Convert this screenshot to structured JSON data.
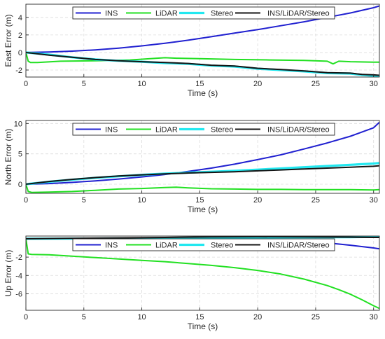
{
  "chart_data": [
    {
      "type": "line",
      "xlabel": "Time (s)",
      "ylabel": "East Error (m)",
      "xlim": [
        0,
        30.5
      ],
      "ylim": [
        -2.8,
        5.5
      ],
      "xticks": [
        0,
        5,
        10,
        15,
        20,
        25,
        30
      ],
      "yticks": [
        -2,
        0,
        2,
        4
      ],
      "grid": true,
      "legend": "top-inside-horizontal",
      "series": [
        {
          "name": "INS",
          "color": "#2020d0",
          "x": [
            0,
            2,
            4,
            6,
            8,
            10,
            12,
            14,
            16,
            18,
            20,
            22,
            24,
            26,
            28,
            30,
            30.5
          ],
          "y": [
            0,
            0.05,
            0.15,
            0.3,
            0.5,
            0.75,
            1.05,
            1.4,
            1.8,
            2.2,
            2.6,
            3.05,
            3.5,
            4.0,
            4.5,
            5.1,
            5.3
          ]
        },
        {
          "name": "LiDAR",
          "color": "#22e022",
          "x": [
            0,
            0.2,
            0.4,
            1,
            3,
            6,
            9,
            12,
            13,
            15,
            18,
            21,
            24,
            26,
            26.5,
            27,
            28,
            30,
            30.5
          ],
          "y": [
            0,
            -1.0,
            -1.15,
            -1.15,
            -1.0,
            -0.95,
            -0.85,
            -0.6,
            -0.65,
            -0.7,
            -0.8,
            -0.85,
            -0.9,
            -1.0,
            -1.3,
            -1.0,
            -1.05,
            -1.1,
            -1.1
          ]
        },
        {
          "name": "Stereo",
          "color": "#22e8f0",
          "x": [
            0,
            2,
            4,
            6,
            8,
            10,
            12,
            14,
            16,
            18,
            20,
            22,
            24,
            26,
            28,
            29,
            30,
            30.5
          ],
          "y": [
            0,
            -0.25,
            -0.55,
            -0.8,
            -0.95,
            -1.05,
            -1.2,
            -1.3,
            -1.5,
            -1.6,
            -1.85,
            -2.0,
            -2.15,
            -2.35,
            -2.4,
            -2.55,
            -2.65,
            -2.75
          ]
        },
        {
          "name": "INS/LiDAR/Stereo",
          "color": "#141414",
          "x": [
            0,
            2,
            4,
            6,
            8,
            10,
            12,
            14,
            16,
            18,
            20,
            22,
            24,
            26,
            28,
            29,
            30,
            30.5
          ],
          "y": [
            0,
            -0.3,
            -0.55,
            -0.8,
            -0.95,
            -1.05,
            -1.15,
            -1.25,
            -1.45,
            -1.55,
            -1.8,
            -1.95,
            -2.1,
            -2.3,
            -2.35,
            -2.5,
            -2.55,
            -2.6
          ]
        }
      ]
    },
    {
      "type": "line",
      "xlabel": "Time (s)",
      "ylabel": "North Error (m)",
      "xlim": [
        0,
        30.5
      ],
      "ylim": [
        -1.5,
        10.5
      ],
      "xticks": [
        0,
        5,
        10,
        15,
        20,
        25,
        30
      ],
      "yticks": [
        0,
        5,
        10
      ],
      "grid": true,
      "legend": "top-inside-horizontal",
      "series": [
        {
          "name": "INS",
          "color": "#2020d0",
          "x": [
            0,
            2,
            4,
            6,
            8,
            10,
            12,
            14,
            16,
            18,
            20,
            22,
            24,
            26,
            28,
            30,
            30.5
          ],
          "y": [
            0,
            0.1,
            0.3,
            0.55,
            0.85,
            1.2,
            1.6,
            2.1,
            2.65,
            3.3,
            4.05,
            4.85,
            5.8,
            6.8,
            7.9,
            9.3,
            10.2
          ]
        },
        {
          "name": "LiDAR",
          "color": "#22e022",
          "x": [
            0,
            0.2,
            0.5,
            2,
            4,
            6,
            8,
            10,
            12,
            13,
            14,
            16,
            18,
            20,
            22,
            24,
            26,
            28,
            30,
            30.5
          ],
          "y": [
            0,
            -1.2,
            -1.35,
            -1.3,
            -1.2,
            -1.0,
            -0.8,
            -0.7,
            -0.55,
            -0.5,
            -0.6,
            -0.75,
            -0.8,
            -0.85,
            -0.85,
            -0.9,
            -0.9,
            -0.9,
            -0.95,
            -0.9
          ]
        },
        {
          "name": "Stereo",
          "color": "#22e8f0",
          "x": [
            0,
            2,
            4,
            6,
            8,
            10,
            12,
            14,
            16,
            18,
            20,
            22,
            24,
            26,
            28,
            30,
            30.5
          ],
          "y": [
            0,
            0.4,
            0.75,
            1.05,
            1.3,
            1.55,
            1.75,
            1.9,
            2.05,
            2.2,
            2.4,
            2.6,
            2.8,
            3.0,
            3.2,
            3.4,
            3.5
          ]
        },
        {
          "name": "INS/LiDAR/Stereo",
          "color": "#141414",
          "x": [
            0,
            2,
            4,
            6,
            8,
            10,
            12,
            14,
            16,
            18,
            20,
            22,
            24,
            26,
            28,
            30,
            30.5
          ],
          "y": [
            0,
            0.45,
            0.8,
            1.1,
            1.35,
            1.55,
            1.7,
            1.85,
            1.95,
            2.05,
            2.2,
            2.35,
            2.5,
            2.65,
            2.8,
            2.95,
            3.05
          ]
        }
      ]
    },
    {
      "type": "line",
      "xlabel": "Time (s)",
      "ylabel": "Up Error (m)",
      "xlim": [
        0,
        30.5
      ],
      "ylim": [
        -7.8,
        0.3
      ],
      "xticks": [
        0,
        5,
        10,
        15,
        20,
        25,
        30
      ],
      "yticks": [
        -6,
        -4,
        -2
      ],
      "grid": true,
      "legend": "top-inside-horizontal",
      "series": [
        {
          "name": "INS",
          "color": "#2020d0",
          "x": [
            0,
            4,
            8,
            12,
            16,
            20,
            24,
            26,
            28,
            30,
            30.5
          ],
          "y": [
            0,
            0,
            -0.05,
            -0.1,
            -0.15,
            -0.2,
            -0.3,
            -0.45,
            -0.7,
            -1.0,
            -1.1
          ]
        },
        {
          "name": "LiDAR",
          "color": "#22e022",
          "x": [
            0,
            0.2,
            0.5,
            2,
            4,
            6,
            8,
            10,
            12,
            14,
            16,
            18,
            20,
            22,
            24,
            26,
            27,
            28,
            29,
            30,
            30.5
          ],
          "y": [
            0,
            -1.65,
            -1.7,
            -1.75,
            -1.9,
            -2.05,
            -2.2,
            -2.35,
            -2.5,
            -2.7,
            -2.9,
            -3.15,
            -3.45,
            -3.85,
            -4.4,
            -5.1,
            -5.55,
            -6.05,
            -6.65,
            -7.3,
            -7.6
          ]
        },
        {
          "name": "Stereo",
          "color": "#22e8f0",
          "x": [
            0,
            4,
            8,
            12,
            16,
            20,
            24,
            28,
            30,
            30.5
          ],
          "y": [
            0,
            0.02,
            0.05,
            0.08,
            0.12,
            0.15,
            0.16,
            0.18,
            0.2,
            0.2
          ]
        },
        {
          "name": "INS/LiDAR/Stereo",
          "color": "#141414",
          "x": [
            0,
            4,
            8,
            12,
            16,
            20,
            24,
            28,
            30,
            30.5
          ],
          "y": [
            0,
            0.05,
            0.1,
            0.15,
            0.2,
            0.22,
            0.2,
            0.18,
            0.15,
            0.15
          ]
        }
      ]
    }
  ]
}
